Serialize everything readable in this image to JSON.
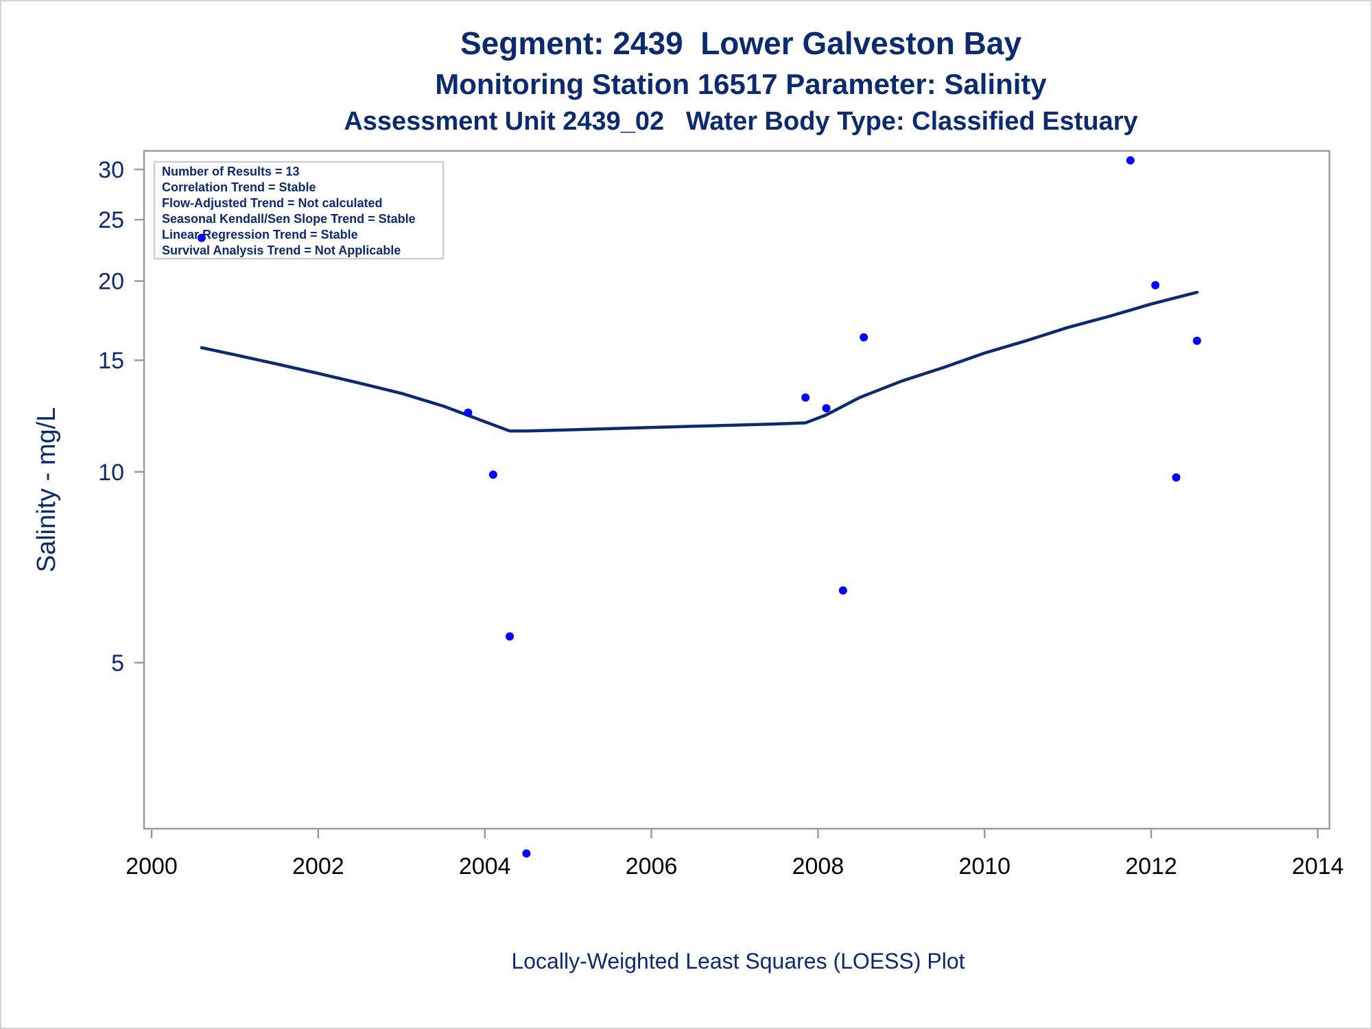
{
  "colors": {
    "title": "#0b2a6f",
    "axis_label": "#0b2a6f",
    "tick_y": "#0b2a6f",
    "tick_x": "#000000",
    "frame": "#9a9a9a",
    "marker": "#0000ff",
    "loess": "#0b2a6f"
  },
  "chart_data": {
    "type": "scatter",
    "title": "Segment: 2439  Lower Galveston Bay",
    "subtitle": "Monitoring Station 16517 Parameter: Salinity",
    "subtitle2": "Assessment Unit 2439_02   Water Body Type: Classified Estuary",
    "xlabel": "Locally-Weighted Least Squares (LOESS) Plot",
    "ylabel": "Salinity - mg/L",
    "xlim": [
      2000,
      2014
    ],
    "ylim": [
      2.4,
      32
    ],
    "y_scale": "log",
    "grid": false,
    "x_ticks": [
      2000,
      2002,
      2004,
      2006,
      2008,
      2010,
      2012,
      2014
    ],
    "y_ticks": [
      5,
      10,
      15,
      20,
      25,
      30
    ],
    "stats_box": {
      "placement": "top-left",
      "lines": [
        "Number of Results = 13",
        "Correlation Trend = Stable",
        "Flow-Adjusted Trend = Not calculated",
        "Seasonal Kendall/Sen Slope Trend = Stable",
        "Linear Regression Trend = Stable",
        "Survival Analysis Trend = Not Applicable"
      ]
    },
    "series": [
      {
        "kind": "points",
        "points": [
          {
            "x": 2000.6,
            "y": 23.4
          },
          {
            "x": 2003.8,
            "y": 12.4
          },
          {
            "x": 2004.1,
            "y": 9.9
          },
          {
            "x": 2004.3,
            "y": 5.5
          },
          {
            "x": 2004.5,
            "y": 2.5
          },
          {
            "x": 2007.85,
            "y": 13.1
          },
          {
            "x": 2008.1,
            "y": 12.6
          },
          {
            "x": 2008.3,
            "y": 6.5
          },
          {
            "x": 2008.55,
            "y": 16.3
          },
          {
            "x": 2011.75,
            "y": 31.0
          },
          {
            "x": 2012.05,
            "y": 19.7
          },
          {
            "x": 2012.3,
            "y": 9.8
          },
          {
            "x": 2012.55,
            "y": 16.1
          }
        ]
      },
      {
        "kind": "loess",
        "points": [
          {
            "x": 2000.6,
            "y": 15.7
          },
          {
            "x": 2001.0,
            "y": 15.3
          },
          {
            "x": 2001.5,
            "y": 14.8
          },
          {
            "x": 2002.0,
            "y": 14.3
          },
          {
            "x": 2002.5,
            "y": 13.8
          },
          {
            "x": 2003.0,
            "y": 13.3
          },
          {
            "x": 2003.5,
            "y": 12.7
          },
          {
            "x": 2004.0,
            "y": 12.0
          },
          {
            "x": 2004.3,
            "y": 11.6
          },
          {
            "x": 2004.5,
            "y": 11.6
          },
          {
            "x": 2005.0,
            "y": 11.65
          },
          {
            "x": 2005.5,
            "y": 11.7
          },
          {
            "x": 2006.0,
            "y": 11.75
          },
          {
            "x": 2006.5,
            "y": 11.8
          },
          {
            "x": 2007.0,
            "y": 11.85
          },
          {
            "x": 2007.5,
            "y": 11.9
          },
          {
            "x": 2007.85,
            "y": 11.95
          },
          {
            "x": 2008.1,
            "y": 12.3
          },
          {
            "x": 2008.5,
            "y": 13.1
          },
          {
            "x": 2009.0,
            "y": 13.9
          },
          {
            "x": 2009.5,
            "y": 14.6
          },
          {
            "x": 2010.0,
            "y": 15.4
          },
          {
            "x": 2010.5,
            "y": 16.1
          },
          {
            "x": 2011.0,
            "y": 16.9
          },
          {
            "x": 2011.5,
            "y": 17.6
          },
          {
            "x": 2012.0,
            "y": 18.4
          },
          {
            "x": 2012.55,
            "y": 19.2
          }
        ]
      }
    ]
  }
}
